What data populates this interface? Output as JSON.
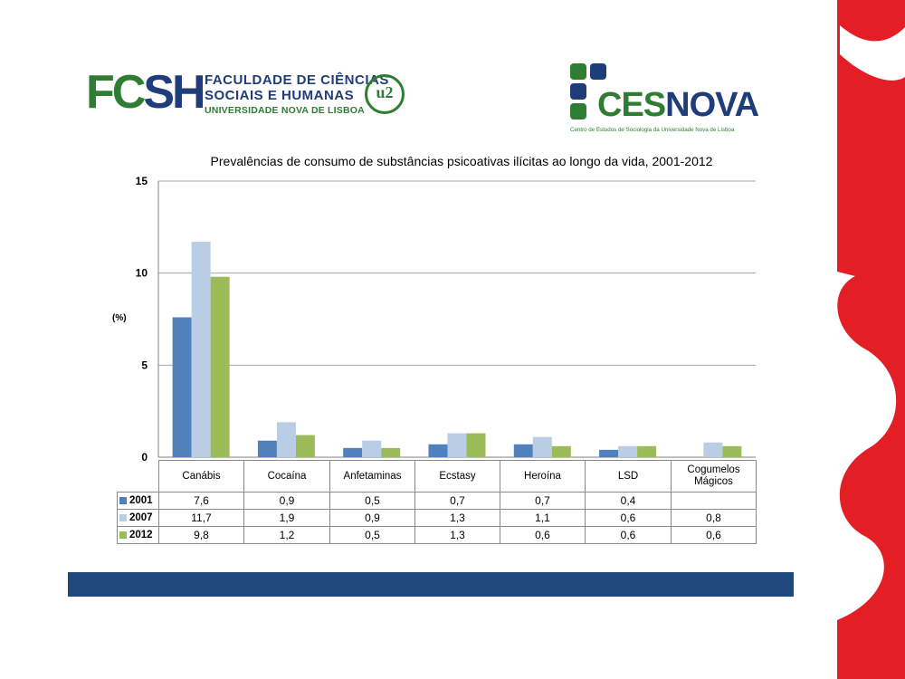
{
  "logos": {
    "fcsh": {
      "acronym_part1": "FC",
      "acronym_part2": "SH",
      "line1": "FACULDADE DE CIÊNCIAS",
      "line2": "SOCIAIS E HUMANAS",
      "line3": "UNIVERSIDADE NOVA DE LISBOA",
      "seal": "u2"
    },
    "cesnova": {
      "part1": "CES",
      "part2": "NOVA",
      "subtitle": "Centro de Estudos de Sociologia da Universidade Nova de Lisboa"
    }
  },
  "chart_data": {
    "type": "bar",
    "title": "Prevalências de consumo de substâncias psicoativas ilícitas ao longo da vida, 2001-2012",
    "ylabel": "(%)",
    "xlabel": "",
    "ylim": [
      0,
      15
    ],
    "yticks": [
      0,
      5,
      10,
      15
    ],
    "grid": true,
    "legend": "data-table",
    "categories": [
      "Canábis",
      "Cocaína",
      "Anfetaminas",
      "Ecstasy",
      "Heroína",
      "LSD",
      "Cogumelos Mágicos"
    ],
    "series": [
      {
        "name": "2001",
        "color": "#4f81bd",
        "values": [
          7.6,
          0.9,
          0.5,
          0.7,
          0.7,
          0.4,
          null
        ],
        "labels": [
          "7,6",
          "0,9",
          "0,5",
          "0,7",
          "0,7",
          "0,4",
          ""
        ]
      },
      {
        "name": "2007",
        "color": "#b9cde5",
        "values": [
          11.7,
          1.9,
          0.9,
          1.3,
          1.1,
          0.6,
          0.8
        ],
        "labels": [
          "11,7",
          "1,9",
          "0,9",
          "1,3",
          "1,1",
          "0,6",
          "0,8"
        ]
      },
      {
        "name": "2012",
        "color": "#9bbb59",
        "values": [
          9.8,
          1.2,
          0.5,
          1.3,
          0.6,
          0.6,
          0.6
        ],
        "labels": [
          "9,8",
          "1,2",
          "0,5",
          "1,3",
          "0,6",
          "0,6",
          "0,6"
        ]
      }
    ]
  },
  "colors": {
    "footer_bar": "#1f497d",
    "accent_red": "#e31e24",
    "fcsh_green": "#2e7d32",
    "fcsh_blue": "#1f3d7a"
  }
}
